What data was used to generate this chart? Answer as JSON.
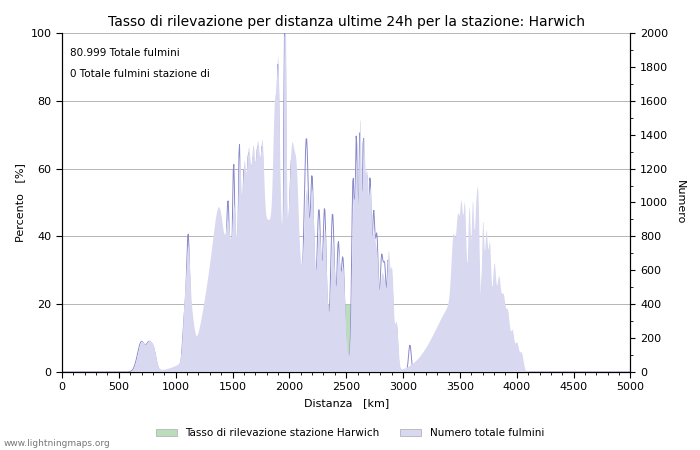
{
  "title": "Tasso di rilevazione per distanza ultime 24h per la stazione: Harwich",
  "xlabel": "Distanza   [km]",
  "ylabel_left": "Percento   [%]",
  "ylabel_right": "Numero",
  "annotation_line1": "80.999 Totale fulmini",
  "annotation_line2": "0 Totale fulmini stazione di",
  "xlim": [
    0,
    5000
  ],
  "ylim_left": [
    0,
    100
  ],
  "ylim_right": [
    0,
    2000
  ],
  "xticks": [
    0,
    500,
    1000,
    1500,
    2000,
    2500,
    3000,
    3500,
    4000,
    4500,
    5000
  ],
  "yticks_left": [
    0,
    20,
    40,
    60,
    80,
    100
  ],
  "yticks_right": [
    0,
    200,
    400,
    600,
    800,
    1000,
    1200,
    1400,
    1600,
    1800,
    2000
  ],
  "legend_label_green": "Tasso di rilevazione stazione Harwich",
  "legend_label_blue": "Numero totale fulmini",
  "watermark": "www.lightningmaps.org",
  "line_color": "#8888cc",
  "fill_blue_color": "#d8d8f0",
  "fill_green_color": "#bbddbb",
  "background_color": "#ffffff",
  "grid_color": "#999999",
  "title_fontsize": 10,
  "label_fontsize": 8,
  "tick_fontsize": 8
}
